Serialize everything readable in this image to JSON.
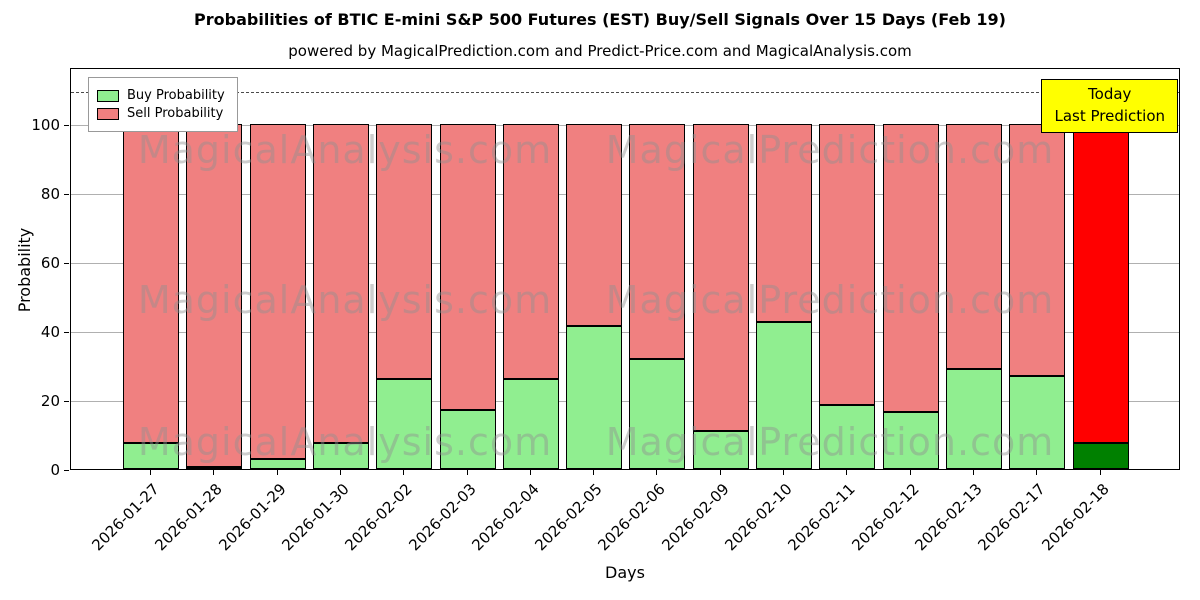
{
  "title": "Probabilities of BTIC E-mini S&P 500 Futures (EST) Buy/Sell Signals Over 15 Days (Feb 19)",
  "subtitle": "powered by MagicalPrediction.com and Predict-Price.com and MagicalAnalysis.com",
  "axes": {
    "x_label": "Days",
    "y_label": "Probability",
    "y_ticks": [
      0,
      20,
      40,
      60,
      80,
      100
    ]
  },
  "legend": {
    "items": [
      {
        "label": "Buy Probability",
        "color": "#90ee90"
      },
      {
        "label": "Sell Probability",
        "color": "#f08080"
      }
    ]
  },
  "annotation": {
    "line1": "Today",
    "line2": "Last Prediction",
    "bg": "#ffff00"
  },
  "watermarks": [
    "MagicalAnalysis.com",
    "MagicalPrediction.com"
  ],
  "chart_data": {
    "type": "bar",
    "stacked": true,
    "title": "Probabilities of BTIC E-mini S&P 500 Futures (EST) Buy/Sell Signals Over 15 Days (Feb 19)",
    "xlabel": "Days",
    "ylabel": "Probability",
    "ylim": [
      0,
      116.5
    ],
    "grid": true,
    "legend_position": "upper left",
    "dashed_line_y": 110,
    "categories": [
      "2026-01-27",
      "2026-01-28",
      "2026-01-29",
      "2026-01-30",
      "2026-02-02",
      "2026-02-03",
      "2026-02-04",
      "2026-02-05",
      "2026-02-06",
      "2026-02-09",
      "2026-02-10",
      "2026-02-11",
      "2026-02-12",
      "2026-02-13",
      "2026-02-17",
      "2026-02-18"
    ],
    "series": [
      {
        "name": "Buy Probability",
        "color": "#90ee90",
        "final_bar_color": "#008000",
        "values": [
          7.5,
          0.5,
          3,
          7.5,
          26,
          17,
          26,
          41.5,
          32,
          11,
          42.5,
          18.5,
          16.5,
          29,
          27,
          7.5
        ]
      },
      {
        "name": "Sell Probability",
        "color": "#f08080",
        "final_bar_color": "#ff0000",
        "values": [
          92.5,
          99.5,
          97,
          92.5,
          74,
          83,
          74,
          58.5,
          68,
          89,
          57.5,
          81.5,
          83.5,
          71,
          73,
          92.5
        ]
      }
    ]
  }
}
